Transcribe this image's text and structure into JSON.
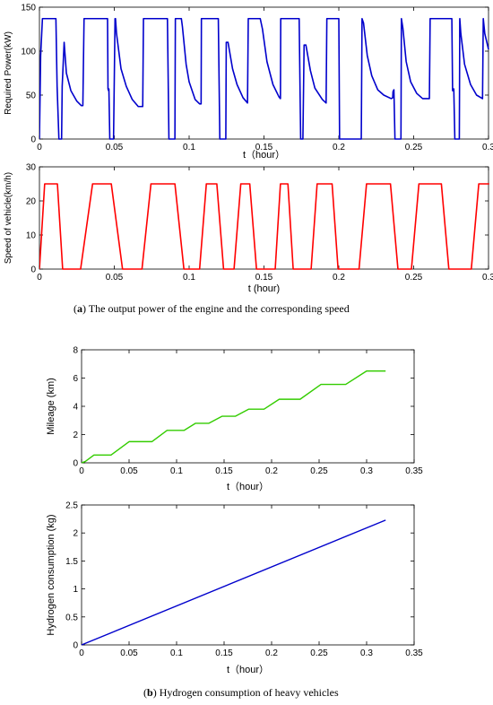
{
  "captions": {
    "a_letter": "a",
    "a_text": "The output power of the engine and the corresponding speed",
    "b_letter": "b",
    "b_text": "Hydrogen consumption of heavy vehicles"
  },
  "chart_data": [
    {
      "id": "power",
      "type": "line",
      "title": "",
      "xlabel": "t（hour）",
      "ylabel": "Required Power(kW)",
      "xlim": [
        0,
        0.3
      ],
      "ylim": [
        0,
        150
      ],
      "xticks": [
        "0",
        "0.05",
        "0.1",
        "0.15",
        "0.2",
        "0.25",
        "0.3"
      ],
      "yticks": [
        "0",
        "50",
        "100",
        "150"
      ],
      "grid": false,
      "series": [
        {
          "color": "#0000cc",
          "points": [
            [
              0,
              0
            ],
            [
              0.0008,
              95
            ],
            [
              0.002,
              137
            ],
            [
              0.011,
              137
            ],
            [
              0.0118,
              60
            ],
            [
              0.013,
              0
            ],
            [
              0.0148,
              0
            ],
            [
              0.0152,
              60
            ],
            [
              0.0165,
              110
            ],
            [
              0.018,
              75
            ],
            [
              0.021,
              55
            ],
            [
              0.025,
              43
            ],
            [
              0.028,
              38
            ],
            [
              0.029,
              38
            ],
            [
              0.0298,
              137
            ],
            [
              0.0455,
              137
            ],
            [
              0.0458,
              57
            ],
            [
              0.0462,
              55
            ],
            [
              0.0464,
              57
            ],
            [
              0.047,
              0
            ],
            [
              0.0495,
              0
            ],
            [
              0.0505,
              137
            ],
            [
              0.0508,
              137
            ],
            [
              0.0515,
              120
            ],
            [
              0.0545,
              80
            ],
            [
              0.058,
              60
            ],
            [
              0.062,
              45
            ],
            [
              0.066,
              37
            ],
            [
              0.069,
              37
            ],
            [
              0.0695,
              137
            ],
            [
              0.0855,
              137
            ],
            [
              0.0865,
              0
            ],
            [
              0.0905,
              0
            ],
            [
              0.0908,
              137
            ],
            [
              0.0945,
              137
            ],
            [
              0.0948,
              137
            ],
            [
              0.0955,
              128
            ],
            [
              0.098,
              85
            ],
            [
              0.1,
              65
            ],
            [
              0.104,
              45
            ],
            [
              0.107,
              40
            ],
            [
              0.108,
              40
            ],
            [
              0.1082,
              137
            ],
            [
              0.1195,
              137
            ],
            [
              0.1205,
              0
            ],
            [
              0.1245,
              0
            ],
            [
              0.1248,
              110
            ],
            [
              0.126,
              110
            ],
            [
              0.129,
              80
            ],
            [
              0.132,
              62
            ],
            [
              0.136,
              47
            ],
            [
              0.139,
              41
            ],
            [
              0.1395,
              137
            ],
            [
              0.147,
              137
            ],
            [
              0.1475,
              137
            ],
            [
              0.149,
              125
            ],
            [
              0.152,
              88
            ],
            [
              0.156,
              62
            ],
            [
              0.16,
              48
            ],
            [
              0.161,
              46
            ],
            [
              0.1612,
              137
            ],
            [
              0.1735,
              137
            ],
            [
              0.1745,
              0
            ],
            [
              0.176,
              0
            ],
            [
              0.1768,
              107
            ],
            [
              0.178,
              107
            ],
            [
              0.181,
              78
            ],
            [
              0.184,
              58
            ],
            [
              0.189,
              45
            ],
            [
              0.1915,
              41
            ],
            [
              0.192,
              137
            ],
            [
              0.1995,
              137
            ],
            [
              0.2,
              137
            ],
            [
              0.2005,
              0
            ],
            [
              0.215,
              0
            ],
            [
              0.2155,
              137
            ],
            [
              0.2165,
              132
            ],
            [
              0.219,
              95
            ],
            [
              0.222,
              72
            ],
            [
              0.226,
              56
            ],
            [
              0.23,
              50
            ],
            [
              0.235,
              46
            ],
            [
              0.236,
              47
            ],
            [
              0.2362,
              54
            ],
            [
              0.2368,
              56
            ],
            [
              0.2375,
              0
            ],
            [
              0.2415,
              0
            ],
            [
              0.2418,
              137
            ],
            [
              0.2428,
              126
            ],
            [
              0.245,
              88
            ],
            [
              0.248,
              65
            ],
            [
              0.252,
              52
            ],
            [
              0.256,
              46
            ],
            [
              0.2605,
              46
            ],
            [
              0.261,
              137
            ],
            [
              0.2755,
              137
            ],
            [
              0.276,
              55
            ],
            [
              0.2768,
              57
            ],
            [
              0.2775,
              0
            ],
            [
              0.2805,
              0
            ],
            [
              0.2808,
              137
            ],
            [
              0.2815,
              120
            ],
            [
              0.284,
              85
            ],
            [
              0.288,
              62
            ],
            [
              0.292,
              50
            ],
            [
              0.296,
              46
            ],
            [
              0.2965,
              137
            ],
            [
              0.2975,
              120
            ],
            [
              0.3,
              102
            ]
          ]
        }
      ]
    },
    {
      "id": "speed",
      "type": "line",
      "title": "",
      "xlabel": "t (hour)",
      "ylabel": "Speed of vehicle(km/h)",
      "xlim": [
        0,
        0.3
      ],
      "ylim": [
        0,
        30
      ],
      "xticks": [
        "0",
        "0.05",
        "0.1",
        "0.15",
        "0.2",
        "0.25",
        "0.3"
      ],
      "yticks": [
        "0",
        "10",
        "20",
        "30"
      ],
      "grid": false,
      "series": [
        {
          "color": "#ff0000",
          "points": [
            [
              0,
              0
            ],
            [
              0.0035,
              25
            ],
            [
              0.012,
              25
            ],
            [
              0.0155,
              0
            ],
            [
              0.0275,
              0
            ],
            [
              0.0355,
              25
            ],
            [
              0.048,
              25
            ],
            [
              0.0555,
              0
            ],
            [
              0.0685,
              0
            ],
            [
              0.0745,
              25
            ],
            [
              0.0905,
              25
            ],
            [
              0.0965,
              0
            ],
            [
              0.107,
              0
            ],
            [
              0.1115,
              25
            ],
            [
              0.1185,
              25
            ],
            [
              0.123,
              0
            ],
            [
              0.13,
              0
            ],
            [
              0.1345,
              25
            ],
            [
              0.1405,
              25
            ],
            [
              0.145,
              0
            ],
            [
              0.1575,
              0
            ],
            [
              0.161,
              25
            ],
            [
              0.166,
              25
            ],
            [
              0.1695,
              0
            ],
            [
              0.1815,
              0
            ],
            [
              0.1855,
              25
            ],
            [
              0.1955,
              25
            ],
            [
              0.1995,
              0
            ],
            [
              0.2135,
              0
            ],
            [
              0.2185,
              25
            ],
            [
              0.2345,
              25
            ],
            [
              0.2395,
              0
            ],
            [
              0.2485,
              0
            ],
            [
              0.2535,
              25
            ],
            [
              0.2685,
              25
            ],
            [
              0.2735,
              0
            ],
            [
              0.2885,
              0
            ],
            [
              0.2935,
              25
            ],
            [
              0.3005,
              25
            ]
          ]
        }
      ]
    },
    {
      "id": "mileage",
      "type": "line",
      "title": "",
      "xlabel": "t（hour）",
      "ylabel": "Mileage (km)",
      "xlim": [
        0,
        0.35
      ],
      "ylim": [
        0,
        8
      ],
      "xticks": [
        "0",
        "0.05",
        "0.1",
        "0.15",
        "0.2",
        "0.25",
        "0.3",
        "0.35"
      ],
      "yticks": [
        "0",
        "2",
        "4",
        "6",
        "8"
      ],
      "grid": false,
      "series": [
        {
          "color": "#33cc00",
          "points": [
            [
              0,
              0
            ],
            [
              0.004,
              0.1
            ],
            [
              0.013,
              0.55
            ],
            [
              0.031,
              0.55
            ],
            [
              0.05,
              1.5
            ],
            [
              0.074,
              1.5
            ],
            [
              0.09,
              2.3
            ],
            [
              0.108,
              2.3
            ],
            [
              0.12,
              2.8
            ],
            [
              0.134,
              2.8
            ],
            [
              0.148,
              3.3
            ],
            [
              0.162,
              3.3
            ],
            [
              0.176,
              3.8
            ],
            [
              0.192,
              3.8
            ],
            [
              0.208,
              4.5
            ],
            [
              0.23,
              4.5
            ],
            [
              0.252,
              5.55
            ],
            [
              0.278,
              5.55
            ],
            [
              0.3,
              6.5
            ],
            [
              0.32,
              6.5
            ]
          ]
        }
      ]
    },
    {
      "id": "hydrogen",
      "type": "line",
      "title": "",
      "xlabel": "t（hour）",
      "ylabel": "Hydrogen consumption (kg)",
      "xlim": [
        0,
        0.35
      ],
      "ylim": [
        0,
        2.5
      ],
      "xticks": [
        "0",
        "0.05",
        "0.1",
        "0.15",
        "0.2",
        "0.25",
        "0.3",
        "0.35"
      ],
      "yticks": [
        "0",
        "0.5",
        "1",
        "1.5",
        "2",
        "2.5"
      ],
      "grid": false,
      "series": [
        {
          "color": "#0000cc",
          "points": [
            [
              0,
              0
            ],
            [
              0.32,
              2.23
            ]
          ]
        }
      ]
    }
  ]
}
